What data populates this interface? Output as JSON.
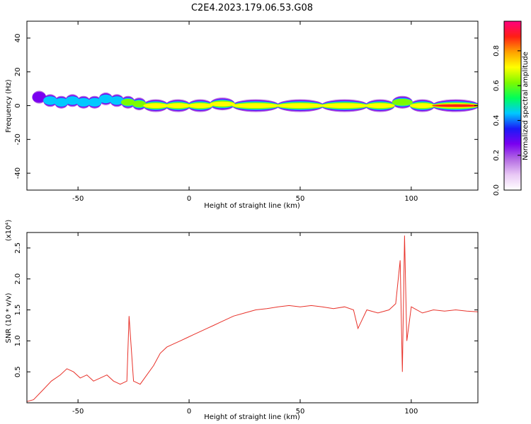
{
  "title": "C2E4.2023.179.06.53.G08",
  "colors": {
    "snr_line": "#e8322a",
    "axis": "#000000"
  },
  "chart_data": [
    {
      "type": "heatmap",
      "xlabel": "Height of straight line (km)",
      "ylabel": "Frequency (Hz)",
      "xlim": [
        -73,
        130
      ],
      "ylim": [
        -50,
        50
      ],
      "xticks": [
        -50,
        0,
        50,
        100
      ],
      "xtick_labels": [
        "-50",
        "0",
        "50",
        "100"
      ],
      "yticks": [
        -40,
        -20,
        0,
        20,
        40
      ],
      "ytick_labels": [
        "-40",
        "-20",
        "0",
        "20",
        "40"
      ],
      "colorbar": {
        "label": "Normalized spectral amplitude",
        "range": [
          0,
          0.97
        ],
        "ticks": [
          0.0,
          0.2,
          0.4,
          0.6,
          0.8
        ],
        "tick_labels": [
          "0.0",
          "0.2",
          "0.4",
          "0.6",
          "0.8"
        ],
        "colormap": [
          "#ffffff",
          "#e9c8f5",
          "#b46be3",
          "#7a00f0",
          "#1a1af7",
          "#00c8ff",
          "#00ff5a",
          "#7dfa00",
          "#ffff00",
          "#ffa000",
          "#ff1e14",
          "#ff007f"
        ]
      },
      "ridge": [
        {
          "x": -70,
          "y": 5,
          "v": 0.4
        },
        {
          "x": -65,
          "y": 3,
          "v": 0.45
        },
        {
          "x": -60,
          "y": 2,
          "v": 0.5
        },
        {
          "x": -55,
          "y": 3,
          "v": 0.55
        },
        {
          "x": -50,
          "y": 2,
          "v": 0.5
        },
        {
          "x": -45,
          "y": 2,
          "v": 0.5
        },
        {
          "x": -40,
          "y": 4,
          "v": 0.55
        },
        {
          "x": -35,
          "y": 3,
          "v": 0.55
        },
        {
          "x": -30,
          "y": 2,
          "v": 0.6
        },
        {
          "x": -25,
          "y": 1,
          "v": 0.65
        },
        {
          "x": -20,
          "y": 0,
          "v": 0.75
        },
        {
          "x": -10,
          "y": 0,
          "v": 0.8
        },
        {
          "x": 0,
          "y": 0,
          "v": 0.8
        },
        {
          "x": 10,
          "y": 1,
          "v": 0.85
        },
        {
          "x": 20,
          "y": 0,
          "v": 0.8
        },
        {
          "x": 40,
          "y": 0,
          "v": 0.8
        },
        {
          "x": 60,
          "y": 0,
          "v": 0.75
        },
        {
          "x": 80,
          "y": 0,
          "v": 0.75
        },
        {
          "x": 92,
          "y": 2,
          "v": 0.6
        },
        {
          "x": 100,
          "y": 0,
          "v": 0.8
        },
        {
          "x": 110,
          "y": 0,
          "v": 0.9
        },
        {
          "x": 130,
          "y": 0,
          "v": 0.8
        }
      ]
    },
    {
      "type": "line",
      "xlabel": "Height of straight line (km)",
      "ylabel": "SNR (10 * v/v)",
      "y_multiplier_label": "(x10⁴)",
      "xlim": [
        -73,
        130
      ],
      "ylim": [
        0,
        2.75
      ],
      "xticks": [
        -50,
        0,
        50,
        100
      ],
      "xtick_labels": [
        "-50",
        "0",
        "50",
        "100"
      ],
      "yticks": [
        0.5,
        1.0,
        1.5,
        2.0,
        2.5
      ],
      "ytick_labels": [
        "0.5",
        "1.0",
        "1.5",
        "2.0",
        "2.5"
      ],
      "series": [
        {
          "color": "#e8322a",
          "x": [
            -73,
            -70,
            -66,
            -62,
            -58,
            -55,
            -52,
            -49,
            -46,
            -43,
            -40,
            -37,
            -34,
            -31,
            -28,
            -27,
            -25,
            -22,
            -19,
            -16,
            -13,
            -10,
            -7,
            -4,
            -1,
            2,
            5,
            8,
            11,
            14,
            17,
            20,
            25,
            30,
            35,
            40,
            45,
            50,
            55,
            60,
            65,
            70,
            74,
            76,
            80,
            85,
            90,
            93,
            95,
            96,
            97,
            98,
            100,
            105,
            110,
            115,
            120,
            125,
            130
          ],
          "y": [
            0.02,
            0.05,
            0.2,
            0.35,
            0.45,
            0.55,
            0.5,
            0.4,
            0.45,
            0.35,
            0.4,
            0.45,
            0.35,
            0.3,
            0.35,
            1.4,
            0.35,
            0.3,
            0.45,
            0.6,
            0.8,
            0.9,
            0.95,
            1.0,
            1.05,
            1.1,
            1.15,
            1.2,
            1.25,
            1.3,
            1.35,
            1.4,
            1.45,
            1.5,
            1.52,
            1.55,
            1.57,
            1.55,
            1.57,
            1.55,
            1.52,
            1.55,
            1.5,
            1.2,
            1.5,
            1.45,
            1.5,
            1.6,
            2.3,
            0.5,
            2.7,
            1.0,
            1.55,
            1.45,
            1.5,
            1.48,
            1.5,
            1.48,
            1.47
          ]
        }
      ]
    }
  ]
}
